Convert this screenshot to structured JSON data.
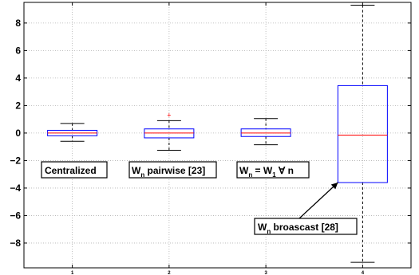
{
  "chart_data": {
    "type": "box",
    "title": "",
    "xlabel": "",
    "ylabel": "",
    "ylim": [
      -9.8,
      9.5
    ],
    "xlim": [
      0.5,
      4.5
    ],
    "yticks": [
      -8,
      -6,
      -4,
      -2,
      0,
      2,
      4,
      6,
      8
    ],
    "ytick_labels": [
      "−8",
      "−6",
      "−4",
      "−2",
      "0",
      "2",
      "4",
      "6",
      "8"
    ],
    "xticks": [
      1,
      2,
      3,
      4
    ],
    "xtick_labels": [
      "1",
      "2",
      "3",
      "4"
    ],
    "grid": true,
    "box_color": "#0000ff",
    "median_color": "#ff0000",
    "whisker_color": "#000000",
    "outlier_color": "#ff0000",
    "boxes": [
      {
        "x": 1,
        "whisker_low": -0.6,
        "q1": -0.2,
        "median": 0.0,
        "q3": 0.2,
        "whisker_high": 0.7,
        "outliers": []
      },
      {
        "x": 2,
        "whisker_low": -1.25,
        "q1": -0.35,
        "median": 0.0,
        "q3": 0.3,
        "whisker_high": 0.9,
        "outliers": [
          1.3
        ]
      },
      {
        "x": 3,
        "whisker_low": -0.85,
        "q1": -0.25,
        "median": 0.0,
        "q3": 0.3,
        "whisker_high": 1.05,
        "outliers": []
      },
      {
        "x": 4,
        "whisker_low": -9.4,
        "q1": -3.6,
        "median": -0.15,
        "q3": 3.45,
        "whisker_high": 9.3,
        "outliers": []
      }
    ],
    "annotations": [
      {
        "main": "Centralized",
        "sub1": "",
        "rest1": "",
        "sub2": "",
        "rest2": ""
      },
      {
        "main": "W",
        "sub1": "n",
        "rest1": " pairwise [23]",
        "sub2": "",
        "rest2": ""
      },
      {
        "main": "W",
        "sub1": "n",
        "rest1": " = W",
        "sub2": "1",
        "rest2": " ∀ n"
      },
      {
        "main": "W",
        "sub1": "n",
        "rest1": " broascast [28]",
        "sub2": "",
        "rest2": "",
        "arrow_to": {
          "x": 4,
          "y": -3.6
        }
      }
    ]
  }
}
